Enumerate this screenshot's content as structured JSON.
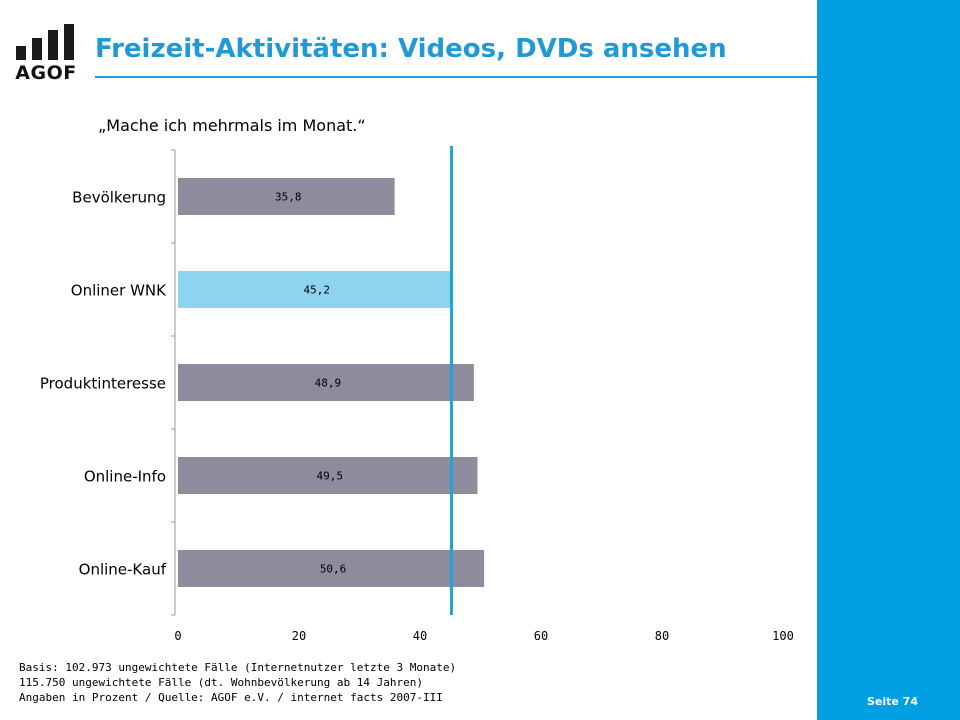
{
  "header": {
    "logo_text": "AGOF",
    "title": "Freizeit-Aktivitäten: Videos, DVDs ansehen"
  },
  "subtitle": "„Mache ich mehrmals im Monat.“",
  "chart_data": {
    "type": "bar",
    "orientation": "horizontal",
    "categories": [
      "Bevölkerung",
      "Onliner WNK",
      "Produktinteresse",
      "Online-Info",
      "Online-Kauf"
    ],
    "values": [
      35.8,
      45.2,
      48.9,
      49.5,
      50.6
    ],
    "value_labels": [
      "35,8",
      "45,2",
      "48,9",
      "49,5",
      "50,6"
    ],
    "highlight_category": "Onliner WNK",
    "reference_line": 45.2,
    "xlim": [
      0,
      100
    ],
    "xticks": [
      0,
      20,
      40,
      60,
      80,
      100
    ],
    "grid": false,
    "colors": {
      "bar": "#8e8c9c",
      "highlight": "#8dd4ee",
      "reference_line": "#1fa3db",
      "axis": "#9a9a9a"
    }
  },
  "footnote": {
    "line1": "Basis: 102.973 ungewichtete Fälle (Internetnutzer letzte 3 Monate)",
    "line2": "115.750 ungewichtete Fälle (dt. Wohnbevölkerung ab 14 Jahren)",
    "line3": "Angaben in Prozent / Quelle: AGOF e.V. / internet facts 2007-III"
  },
  "page": {
    "label": "Seite 74"
  }
}
